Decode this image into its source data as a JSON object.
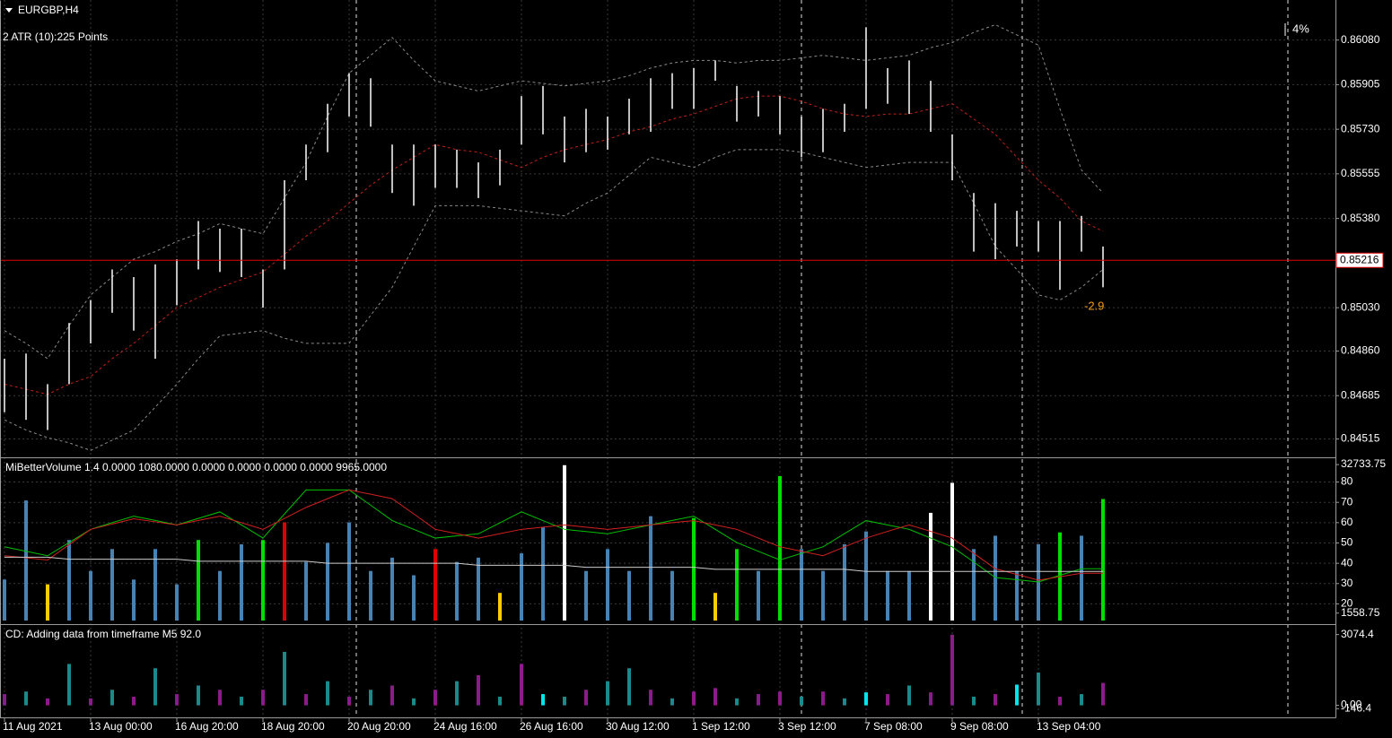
{
  "chart_data": [
    {
      "type": "hilo",
      "title": "EURGBP,H4",
      "subtitle": "2 ATR (10):225 Points",
      "categories": [
        "11 Aug 2021",
        null,
        null,
        null,
        "13 Aug 00:00",
        null,
        null,
        null,
        "16 Aug 20:00",
        null,
        null,
        null,
        "18 Aug 20:00",
        null,
        null,
        null,
        "20 Aug 20:00",
        null,
        null,
        null,
        "24 Aug 16:00",
        null,
        null,
        null,
        "26 Aug 16:00",
        null,
        null,
        null,
        "30 Aug 12:00",
        null,
        null,
        null,
        "1 Sep 12:00",
        null,
        null,
        null,
        "3 Sep 12:00",
        null,
        null,
        null,
        "7 Sep 08:00",
        null,
        null,
        null,
        "9 Sep 08:00",
        null,
        null,
        null,
        "13 Sep 04:00",
        null,
        null,
        null
      ],
      "high": [
        0.8483,
        0.8485,
        0.8473,
        0.8497,
        0.8506,
        0.8518,
        0.8515,
        0.852,
        0.8522,
        0.8537,
        0.8534,
        0.8534,
        0.8518,
        0.8553,
        0.8567,
        0.8583,
        0.8595,
        0.8593,
        0.8567,
        0.8567,
        0.8567,
        0.8565,
        0.856,
        0.8565,
        0.8586,
        0.859,
        0.8578,
        0.8581,
        0.8578,
        0.8585,
        0.8593,
        0.8595,
        0.8597,
        0.86,
        0.859,
        0.8588,
        0.8586,
        0.8578,
        0.8581,
        0.8583,
        0.8613,
        0.8597,
        0.86,
        0.8592,
        0.8571,
        0.8548,
        0.8544,
        0.8541,
        0.8537,
        0.8537,
        0.8539,
        0.8527
      ],
      "low": [
        0.8462,
        0.8459,
        0.8455,
        0.8473,
        0.8489,
        0.8501,
        0.8494,
        0.8483,
        0.8504,
        0.8518,
        0.8517,
        0.8515,
        0.8503,
        0.8518,
        0.8553,
        0.8564,
        0.8578,
        0.8574,
        0.8548,
        0.8543,
        0.855,
        0.855,
        0.8546,
        0.8551,
        0.8567,
        0.8571,
        0.856,
        0.8564,
        0.8565,
        0.8571,
        0.8572,
        0.8581,
        0.8581,
        0.8592,
        0.8576,
        0.8578,
        0.8571,
        0.8562,
        0.8564,
        0.8572,
        0.8581,
        0.8583,
        0.8579,
        0.8572,
        0.8553,
        0.8525,
        0.8522,
        0.8527,
        0.8525,
        0.851,
        0.8525,
        0.8511
      ],
      "color": "#ffffff",
      "series": [
        {
          "color": "#c0201c",
          "dash": true,
          "values": [
            0.8473,
            0.8471,
            0.8469,
            0.8473,
            0.8476,
            0.8483,
            0.8489,
            0.8496,
            0.8503,
            0.8507,
            0.8511,
            0.8514,
            0.8517,
            0.8524,
            0.8531,
            0.8537,
            0.8544,
            0.8551,
            0.8557,
            0.8562,
            0.8567,
            0.8565,
            0.8564,
            0.8561,
            0.8558,
            0.8562,
            0.8565,
            0.8567,
            0.8569,
            0.8572,
            0.8574,
            0.8577,
            0.8579,
            0.8582,
            0.8585,
            0.8586,
            0.8586,
            0.8584,
            0.8581,
            0.8579,
            0.8578,
            0.8579,
            0.8579,
            0.8581,
            0.8583,
            0.8577,
            0.8571,
            0.8562,
            0.8553,
            0.8546,
            0.8537,
            0.8533
          ]
        },
        {
          "color": "#8a8a8a",
          "dash": true,
          "values": [
            0.8494,
            0.8489,
            0.8483,
            0.8496,
            0.8508,
            0.8515,
            0.8522,
            0.8525,
            0.8529,
            0.8532,
            0.8536,
            0.8534,
            0.8532,
            0.8546,
            0.856,
            0.8578,
            0.8595,
            0.8602,
            0.8609,
            0.86,
            0.8592,
            0.859,
            0.8588,
            0.859,
            0.8592,
            0.8591,
            0.859,
            0.8591,
            0.8592,
            0.8594,
            0.8597,
            0.8599,
            0.86,
            0.86,
            0.8599,
            0.86,
            0.86,
            0.8601,
            0.8602,
            0.8601,
            0.86,
            0.8601,
            0.8602,
            0.8605,
            0.8607,
            0.8611,
            0.8614,
            0.861,
            0.8606,
            0.8581,
            0.8557,
            0.8548
          ]
        },
        {
          "color": "#8a8a8a",
          "dash": true,
          "values": [
            0.8459,
            0.8455,
            0.8452,
            0.845,
            0.8447,
            0.8451,
            0.8455,
            0.8464,
            0.8473,
            0.8483,
            0.8492,
            0.8493,
            0.8494,
            0.8491,
            0.8489,
            0.8489,
            0.8489,
            0.85,
            0.8511,
            0.8527,
            0.8543,
            0.8543,
            0.8543,
            0.8542,
            0.8541,
            0.854,
            0.8539,
            0.8544,
            0.8548,
            0.8555,
            0.8562,
            0.856,
            0.8558,
            0.8562,
            0.8565,
            0.8565,
            0.8565,
            0.8564,
            0.8562,
            0.856,
            0.8558,
            0.8559,
            0.856,
            0.856,
            0.856,
            0.8544,
            0.8527,
            0.8518,
            0.8508,
            0.8506,
            0.8511,
            0.8518
          ]
        }
      ],
      "ylim": [
        0.8445,
        0.8623
      ],
      "yticks": [
        {
          "value": 0.84515,
          "label": "0.84515"
        },
        {
          "value": 0.84685,
          "label": "0.84685"
        },
        {
          "value": 0.8486,
          "label": "0.84860"
        },
        {
          "value": 0.8503,
          "label": "0.85030"
        },
        {
          "value": 0.8538,
          "label": "0.85380"
        },
        {
          "value": 0.85555,
          "label": "0.85555"
        },
        {
          "value": 0.8573,
          "label": "0.85730"
        },
        {
          "value": 0.85905,
          "label": "0.85905"
        },
        {
          "value": 0.8608,
          "label": "0.86080"
        }
      ],
      "price_line": {
        "value": 0.85216,
        "label": "0.85216",
        "color": "#e00000"
      },
      "annotations": [
        "-2.9",
        "4%"
      ],
      "grid": true
    },
    {
      "type": "bar",
      "title": "MiBetterVolume 1.4 0.0000 1080.0000 0.0000 0.0000 0.0000 0.0000 9965.0000",
      "series": [
        {
          "type": "bar",
          "axis": "y2",
          "values": [
            8600,
            25200,
            7600,
            16900,
            10400,
            15000,
            8600,
            15000,
            7600,
            16900,
            10400,
            16000,
            16900,
            20600,
            12300,
            16300,
            20600,
            10400,
            13200,
            9500,
            15000,
            12300,
            13200,
            5800,
            14100,
            19600,
            32600,
            10400,
            15000,
            10400,
            21900,
            10400,
            21500,
            5800,
            15000,
            10400,
            30300,
            15000,
            10400,
            16000,
            18700,
            10400,
            10400,
            22600,
            28900,
            15000,
            17800,
            10400,
            16000,
            18500,
            17800,
            25500
          ],
          "colors": [
            "#4682b4",
            "#4682b4",
            "#ffcc00",
            "#4682b4",
            "#4682b4",
            "#4682b4",
            "#4682b4",
            "#4682b4",
            "#4682b4",
            "#00e000",
            "#4682b4",
            "#4682b4",
            "#00e000",
            "#e00000",
            "#4682b4",
            "#4682b4",
            "#4682b4",
            "#4682b4",
            "#4682b4",
            "#4682b4",
            "#e00000",
            "#4682b4",
            "#4682b4",
            "#ffcc00",
            "#4682b4",
            "#4682b4",
            "#ffffff",
            "#4682b4",
            "#4682b4",
            "#4682b4",
            "#4682b4",
            "#4682b4",
            "#00e000",
            "#ffcc00",
            "#00e000",
            "#4682b4",
            "#00e000",
            "#4682b4",
            "#4682b4",
            "#4682b4",
            "#4682b4",
            "#4682b4",
            "#4682b4",
            "#ffffff",
            "#ffffff",
            "#4682b4",
            "#4682b4",
            "#4682b4",
            "#4682b4",
            "#00e000",
            "#4682b4",
            "#00e000"
          ]
        },
        {
          "type": "line",
          "color": "#00c000",
          "values": [
            48.1,
            45.9,
            43.7,
            50.2,
            56.7,
            60.0,
            63.2,
            61.1,
            58.9,
            62.1,
            65.3,
            58.9,
            52.4,
            64.3,
            76.1,
            76.1,
            76.1,
            68.6,
            61.0,
            56.7,
            52.4,
            53.5,
            54.5,
            59.9,
            65.3,
            61.0,
            56.7,
            55.6,
            54.5,
            56.7,
            58.9,
            61.1,
            63.2,
            56.7,
            50.2,
            45.9,
            41.6,
            44.9,
            48.1,
            54.6,
            61.0,
            58.9,
            56.7,
            52.4,
            48.1,
            40.6,
            33.0,
            31.9,
            30.8,
            34.1,
            37.3,
            37.3
          ]
        },
        {
          "type": "line",
          "color": "#d02020",
          "values": [
            43.7,
            42.7,
            41.6,
            49.2,
            56.7,
            59.3,
            61.9,
            60.4,
            58.9,
            61.1,
            63.2,
            60.0,
            56.7,
            62.1,
            67.5,
            71.8,
            76.1,
            74.0,
            71.8,
            64.3,
            56.7,
            54.6,
            52.4,
            54.6,
            56.7,
            57.8,
            58.9,
            57.8,
            56.7,
            57.8,
            58.9,
            60.0,
            61.0,
            58.9,
            56.7,
            52.4,
            48.1,
            45.9,
            43.7,
            48.1,
            52.4,
            55.7,
            58.9,
            55.7,
            52.4,
            44.9,
            37.3,
            34.5,
            31.7,
            33.4,
            35.1,
            35.1
          ]
        },
        {
          "type": "line",
          "color": "#cccccc",
          "values": [
            43,
            43,
            43,
            42,
            42,
            42,
            42,
            42,
            42,
            41,
            41,
            41,
            41,
            41,
            41,
            40,
            40,
            40,
            40,
            40,
            40,
            40,
            39,
            39,
            39,
            39,
            39,
            38,
            38,
            38,
            38,
            38,
            38,
            37,
            37,
            37,
            37,
            37,
            37,
            37,
            36,
            36,
            36,
            36,
            36,
            36,
            36,
            36,
            36,
            36,
            36,
            36
          ]
        }
      ],
      "ylim": [
        11.8,
        90.4
      ],
      "yticks": [
        20,
        30,
        40,
        50,
        60,
        70,
        80
      ],
      "y2lim": [
        0,
        33500
      ],
      "y2ticks": [
        1558.75,
        32733.75
      ],
      "grid": true
    },
    {
      "type": "bar",
      "title": "CD: Adding data from timeframe M5  92.0",
      "values": [
        487,
        599,
        300,
        1798,
        300,
        674,
        375,
        1610,
        487,
        861,
        674,
        375,
        674,
        2322,
        487,
        1049,
        375,
        674,
        861,
        300,
        674,
        1049,
        1311,
        375,
        1798,
        487,
        375,
        674,
        1049,
        1610,
        674,
        300,
        599,
        749,
        300,
        487,
        599,
        375,
        599,
        300,
        562,
        487,
        861,
        562,
        3070,
        375,
        487,
        899,
        1423,
        375,
        487,
        974
      ],
      "colors": [
        "#8b1a8b",
        "#1a8a8a",
        "#8b1a8b",
        "#1a8a8a",
        "#8b1a8b",
        "#1a8a8a",
        "#8b1a8b",
        "#1a8a8a",
        "#8b1a8b",
        "#1a8a8a",
        "#8b1a8b",
        "#1a8a8a",
        "#8b1a8b",
        "#1a8a8a",
        "#8b1a8b",
        "#1a8a8a",
        "#8b1a8b",
        "#1a8a8a",
        "#8b1a8b",
        "#1a8a8a",
        "#8b1a8b",
        "#1a8a8a",
        "#8b1a8b",
        "#1a8a8a",
        "#8b1a8b",
        "#00e5ee",
        "#1a8a8a",
        "#8b1a8b",
        "#1a8a8a",
        "#1a8a8a",
        "#8b1a8b",
        "#1a8a8a",
        "#8b1a8b",
        "#8b1a8b",
        "#1a8a8a",
        "#8b1a8b",
        "#8b1a8b",
        "#1a8a8a",
        "#8b1a8b",
        "#1a8a8a",
        "#00e5ee",
        "#8b1a8b",
        "#1a8a8a",
        "#8b1a8b",
        "#8b1a8b",
        "#1a8a8a",
        "#8b1a8b",
        "#00e5ee",
        "#1a8a8a",
        "#8b1a8b",
        "#1a8a8a",
        "#8b1a8b"
      ],
      "ylim": [
        -446,
        3411
      ],
      "yticks": [
        -146.4,
        {
          "value": 0,
          "label": "0.00"
        },
        3074.4
      ],
      "grid": false
    }
  ]
}
